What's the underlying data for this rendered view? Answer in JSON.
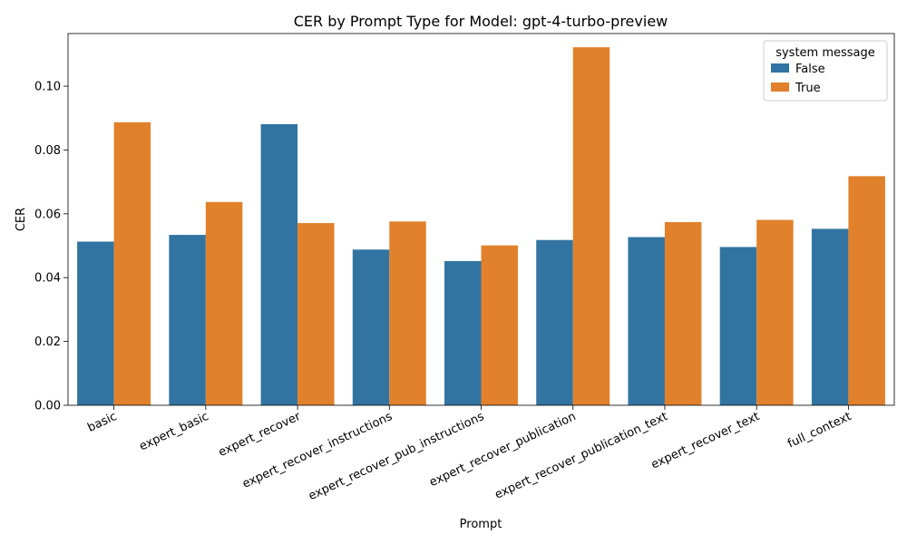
{
  "chart_data": {
    "type": "bar",
    "title": "CER by Prompt Type for Model: gpt-4-turbo-preview",
    "xlabel": "Prompt",
    "ylabel": "CER",
    "categories": [
      "basic",
      "expert_basic",
      "expert_recover",
      "expert_recover_instructions",
      "expert_recover_pub_instructions",
      "expert_recover_publication",
      "expert_recover_publication_text",
      "expert_recover_text",
      "full_context"
    ],
    "series": [
      {
        "name": "False",
        "color": "#3274a1",
        "values": [
          0.0513,
          0.0534,
          0.0881,
          0.0488,
          0.0452,
          0.0518,
          0.0527,
          0.0496,
          0.0553
        ]
      },
      {
        "name": "True",
        "color": "#e1812c",
        "values": [
          0.0887,
          0.0637,
          0.0571,
          0.0576,
          0.0501,
          0.1122,
          0.0574,
          0.0581,
          0.0718
        ]
      }
    ],
    "ylim": [
      0,
      0.1165
    ],
    "yticks": [
      "0.00",
      "0.02",
      "0.04",
      "0.06",
      "0.08",
      "0.10"
    ],
    "grid": false,
    "legend": {
      "title": "system message",
      "placement": "top-right"
    }
  }
}
